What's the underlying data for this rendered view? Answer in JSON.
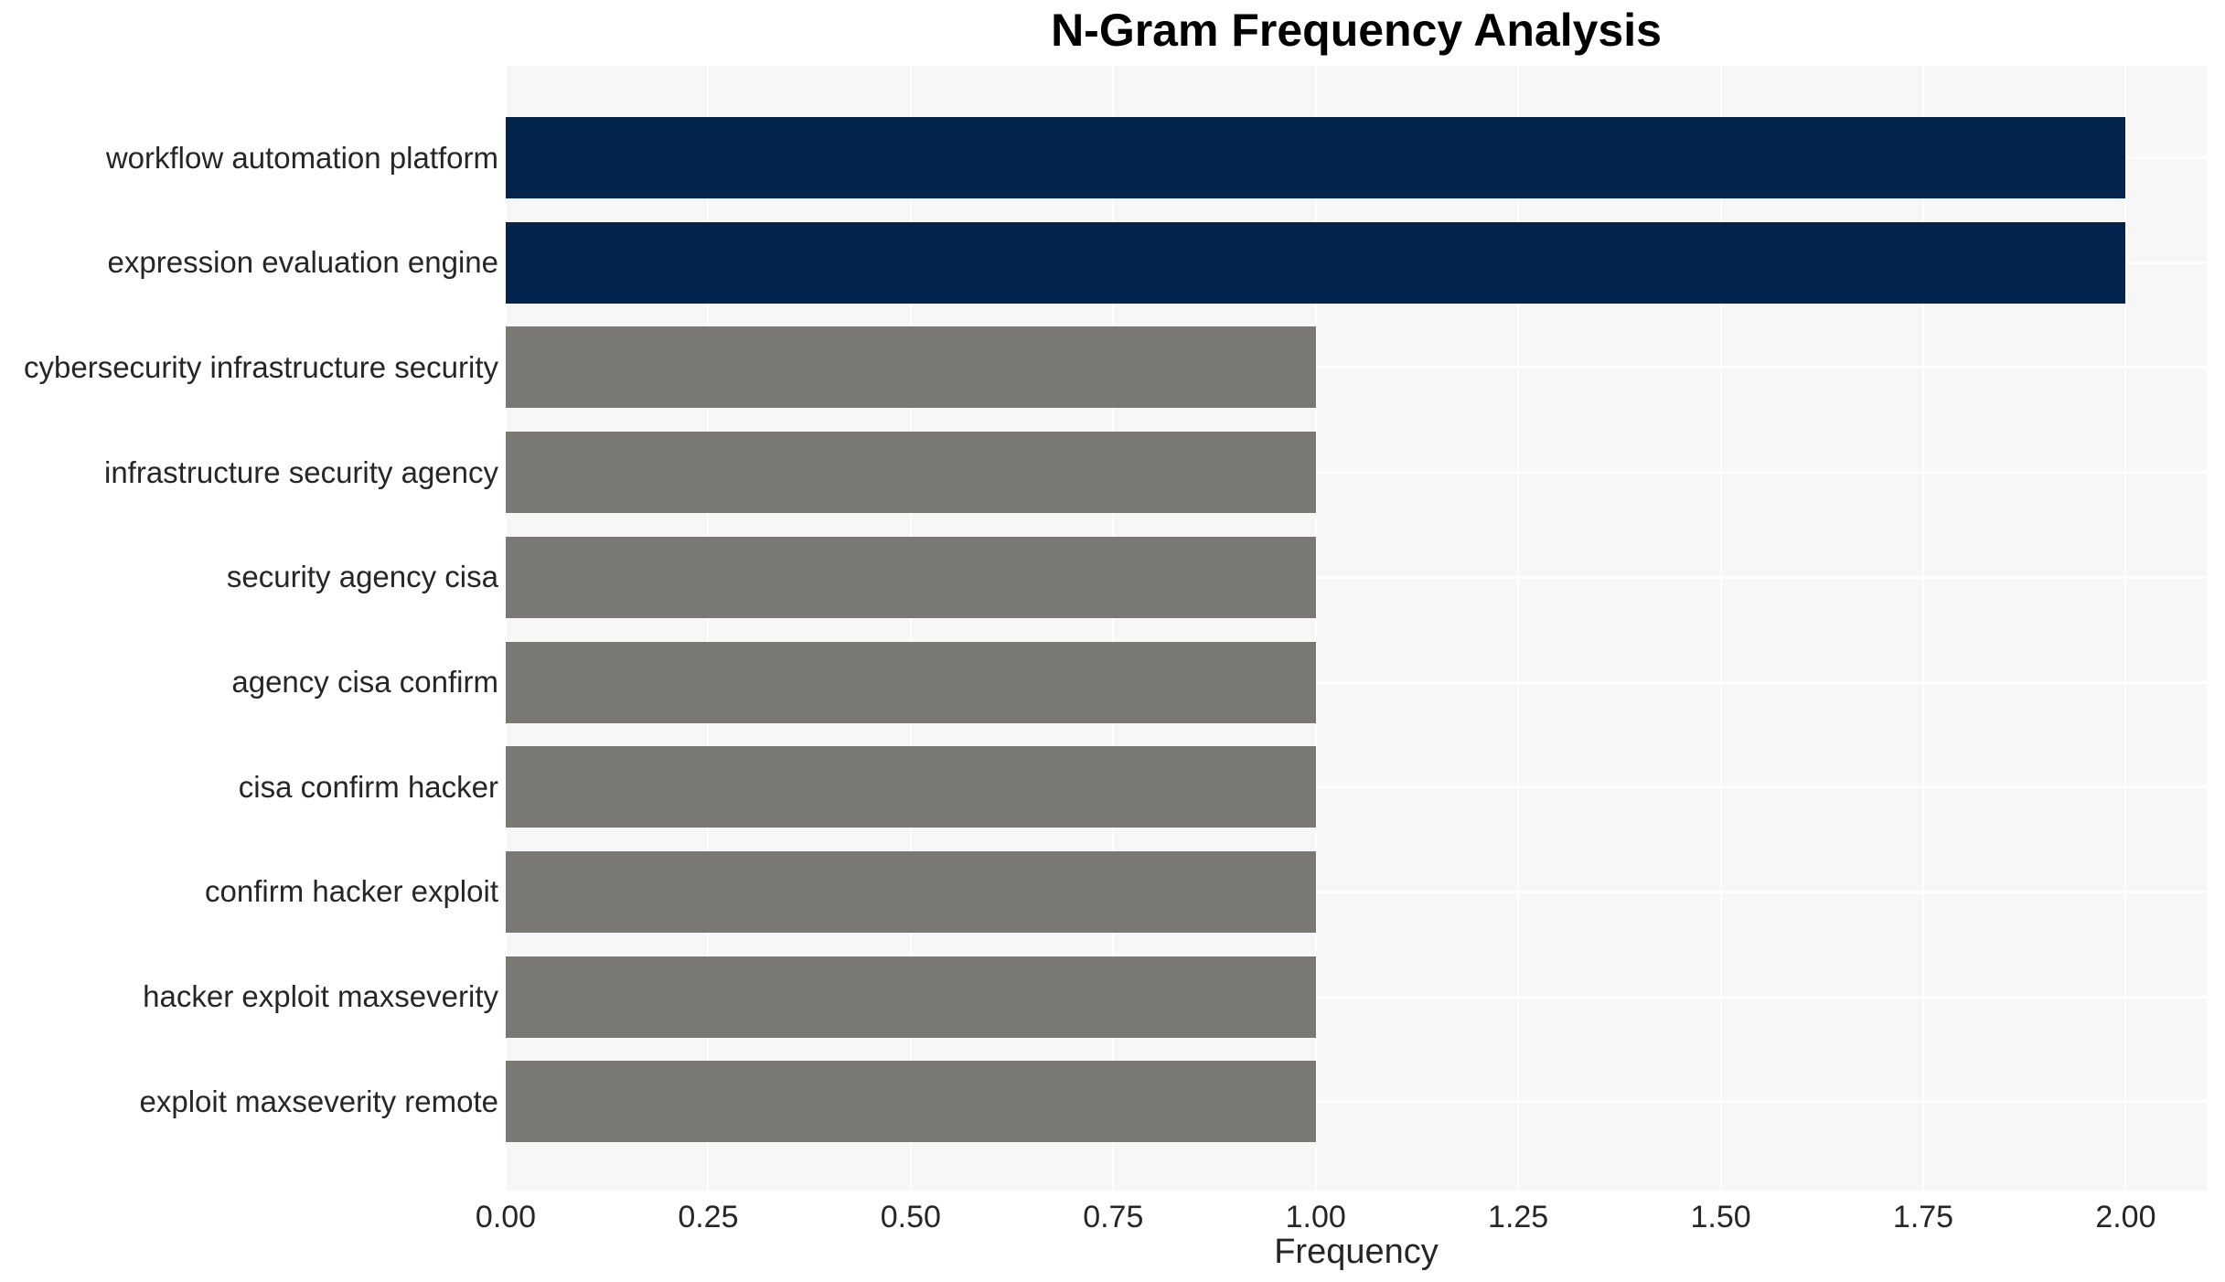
{
  "chart_data": {
    "type": "bar",
    "orientation": "horizontal",
    "title": "N-Gram Frequency Analysis",
    "xlabel": "Frequency",
    "ylabel": "",
    "categories": [
      "workflow automation platform",
      "expression evaluation engine",
      "cybersecurity infrastructure security",
      "infrastructure security agency",
      "security agency cisa",
      "agency cisa confirm",
      "cisa confirm hacker",
      "confirm hacker exploit",
      "hacker exploit maxseverity",
      "exploit maxseverity remote"
    ],
    "values": [
      2,
      2,
      1,
      1,
      1,
      1,
      1,
      1,
      1,
      1
    ],
    "xlim": [
      0,
      2.1
    ],
    "xticks": [
      0,
      0.25,
      0.5,
      0.75,
      1.0,
      1.25,
      1.5,
      1.75,
      2.0
    ],
    "xtick_labels": [
      "0.00",
      "0.25",
      "0.50",
      "0.75",
      "1.00",
      "1.25",
      "1.50",
      "1.75",
      "2.00"
    ],
    "grid": true,
    "legend": false,
    "bar_colors": [
      "#02244d",
      "#02244d",
      "#7a7874",
      "#7a7874",
      "#7a7874",
      "#7a7874",
      "#7a7874",
      "#7a7874",
      "#7a7874",
      "#7a7874"
    ],
    "colors": {
      "highlight_bar": "#02244d",
      "default_bar": "#7a7874",
      "plot_background": "#f7f7f7",
      "gridline": "#ffffff",
      "tick_text": "#262626",
      "title_text": "#000000"
    }
  }
}
